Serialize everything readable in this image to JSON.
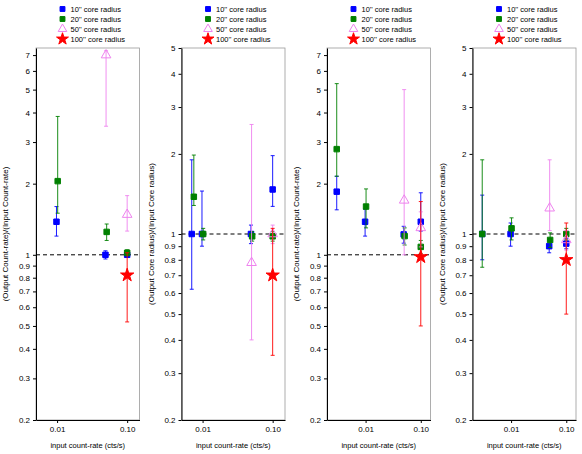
{
  "chart_data": [
    {
      "type": "scatter",
      "x_label": "input count-rate (cts/s)",
      "y_label": "(Output Count-rate)/(Input Count-rate)",
      "log": true,
      "legend": "upper right",
      "xlim": [
        0.005,
        0.15
      ],
      "ylim": [
        0.2,
        7.5
      ],
      "xticks": [
        0.01,
        {
          "value": 0.1,
          "label": "0.10"
        }
      ],
      "yticks": [
        0.2,
        0.3,
        0.4,
        0.5,
        0.6,
        0.7,
        0.8,
        0.9,
        1,
        2,
        3,
        4,
        5,
        6,
        7
      ],
      "reference_lines": [
        {
          "y": 1.0,
          "color": "black",
          "line_style": "dashed"
        }
      ],
      "series": [
        {
          "name": "10'' core radius",
          "color": "blue",
          "marker": "square",
          "x": [
            0.0098,
            0.049,
            0.1
          ],
          "values": [
            1.38,
            1.0,
            1.0
          ],
          "error_low": [
            0.18,
            0.04,
            0.02
          ],
          "error_high": [
            0.22,
            0.04,
            0.02
          ]
        },
        {
          "name": "20'' core radius",
          "color": "green",
          "marker": "square",
          "x": [
            0.0102,
            0.051,
            0.1
          ],
          "values": [
            2.05,
            1.25,
            1.02
          ],
          "error_low": [
            0.55,
            0.1,
            0.03
          ],
          "error_high": [
            1.8,
            0.1,
            0.03
          ]
        },
        {
          "name": "50'' core radius",
          "color": "violet",
          "marker": "triangle-open",
          "x": [
            0.05,
            0.1
          ],
          "values": [
            7.0,
            1.48
          ],
          "error_low": [
            3.5,
            0.22
          ],
          "error_high": [
            0.3,
            0.3
          ]
        },
        {
          "name": "100'' core radius",
          "color": "red",
          "marker": "star",
          "x": [
            0.1
          ],
          "values": [
            0.82
          ],
          "error_low": [
            0.3
          ],
          "error_high": [
            0.2
          ]
        }
      ]
    },
    {
      "type": "scatter",
      "x_label": "input count-rate (cts/s)",
      "y_label": "(Output Core radius)/(Input Core radius)",
      "log": true,
      "legend": "upper right",
      "xlim": [
        0.005,
        0.15
      ],
      "ylim": [
        0.2,
        5.0
      ],
      "xticks": [
        0.01,
        {
          "value": 0.1,
          "label": "0.10"
        }
      ],
      "yticks": [
        0.2,
        0.3,
        0.4,
        0.5,
        0.6,
        0.7,
        0.8,
        0.9,
        1,
        2,
        3,
        4,
        5
      ],
      "reference_lines": [
        {
          "y": 1.0,
          "color": "black",
          "line_style": "dashed"
        }
      ],
      "series": [
        {
          "name": "10'' core radius",
          "color": "blue",
          "marker": "square",
          "x": [
            0.007,
            0.0098,
            0.049,
            0.1
          ],
          "values": [
            1.0,
            1.0,
            1.0,
            1.47
          ],
          "error_low": [
            0.38,
            0.1,
            0.08,
            0.2
          ],
          "error_high": [
            0.9,
            0.45,
            0.08,
            0.5
          ]
        },
        {
          "name": "20'' core radius",
          "color": "green",
          "marker": "square",
          "x": [
            0.0075,
            0.0102,
            0.051,
            0.1
          ],
          "values": [
            1.38,
            1.0,
            0.98,
            0.98
          ],
          "error_low": [
            0.1,
            0.05,
            0.04,
            0.04
          ],
          "error_high": [
            0.6,
            0.05,
            0.04,
            0.04
          ]
        },
        {
          "name": "50'' core radius",
          "color": "violet",
          "marker": "triangle-open",
          "x": [
            0.05,
            0.1
          ],
          "values": [
            0.78,
            1.0
          ],
          "error_low": [
            0.38,
            0.08
          ],
          "error_high": [
            1.8,
            0.08
          ]
        },
        {
          "name": "100'' core radius",
          "color": "red",
          "marker": "star",
          "x": [
            0.1
          ],
          "values": [
            0.7
          ],
          "error_low": [
            0.35
          ],
          "error_high": [
            0.35
          ]
        }
      ]
    },
    {
      "type": "scatter",
      "x_label": "input count-rate (cts/s)",
      "y_label": "(Output Count-rate)/(Input Count-rate)",
      "log": true,
      "legend": "upper right",
      "xlim": [
        0.002,
        0.15
      ],
      "ylim": [
        0.2,
        7.5
      ],
      "xticks": [
        0.01,
        {
          "value": 0.1,
          "label": "0.10"
        }
      ],
      "yticks": [
        0.2,
        0.3,
        0.4,
        0.5,
        0.6,
        0.7,
        0.8,
        0.9,
        1,
        2,
        3,
        4,
        5,
        6,
        7
      ],
      "reference_lines": [
        {
          "y": 1.0,
          "color": "black",
          "line_style": "dashed"
        }
      ],
      "series": [
        {
          "name": "10'' core radius",
          "color": "blue",
          "marker": "square",
          "x": [
            0.003,
            0.0098,
            0.049,
            0.1
          ],
          "values": [
            1.85,
            1.38,
            1.22,
            1.38
          ],
          "error_low": [
            0.3,
            0.18,
            0.1,
            0.12
          ],
          "error_high": [
            0.3,
            0.18,
            0.1,
            0.45
          ]
        },
        {
          "name": "20'' core radius",
          "color": "green",
          "marker": "square",
          "x": [
            0.003,
            0.0102,
            0.051,
            0.1
          ],
          "values": [
            2.8,
            1.6,
            1.2,
            1.08
          ],
          "error_low": [
            0.65,
            0.3,
            0.1,
            0.07
          ],
          "error_high": [
            2.5,
            0.3,
            0.1,
            0.07
          ]
        },
        {
          "name": "50'' core radius",
          "color": "violet",
          "marker": "triangle-open",
          "x": [
            0.05,
            0.1
          ],
          "values": [
            1.7,
            1.3
          ],
          "error_low": [
            0.7,
            0.22
          ],
          "error_high": [
            3.3,
            0.22
          ]
        },
        {
          "name": "100'' core radius",
          "color": "red",
          "marker": "star",
          "x": [
            0.1
          ],
          "values": [
            0.98
          ],
          "error_low": [
            0.48
          ],
          "error_high": [
            0.7
          ]
        }
      ]
    },
    {
      "type": "scatter",
      "x_label": "input count-rate (cts/s)",
      "y_label": "(Output Core radius)/(Input Core radius)",
      "log": true,
      "legend": "upper right",
      "xlim": [
        0.002,
        0.15
      ],
      "ylim": [
        0.2,
        5.0
      ],
      "xticks": [
        0.01,
        {
          "value": 0.1,
          "label": "0.10"
        }
      ],
      "yticks": [
        0.2,
        0.3,
        0.4,
        0.5,
        0.6,
        0.7,
        0.8,
        0.9,
        1,
        2,
        3,
        4,
        5
      ],
      "reference_lines": [
        {
          "y": 1.0,
          "color": "black",
          "line_style": "dashed"
        }
      ],
      "series": [
        {
          "name": "10'' core radius",
          "color": "blue",
          "marker": "square",
          "x": [
            0.003,
            0.0098,
            0.049,
            0.1
          ],
          "values": [
            1.0,
            1.0,
            0.9,
            0.92
          ],
          "error_low": [
            0.2,
            0.1,
            0.05,
            0.04
          ],
          "error_high": [
            0.4,
            0.1,
            0.05,
            0.04
          ]
        },
        {
          "name": "20'' core radius",
          "color": "green",
          "marker": "square",
          "x": [
            0.003,
            0.0102,
            0.051,
            0.1
          ],
          "values": [
            1.0,
            1.05,
            0.95,
            1.0
          ],
          "error_low": [
            0.25,
            0.1,
            0.06,
            0.05
          ],
          "error_high": [
            0.9,
            0.1,
            0.06,
            0.05
          ]
        },
        {
          "name": "50'' core radius",
          "color": "violet",
          "marker": "triangle-open",
          "x": [
            0.05,
            0.1
          ],
          "values": [
            1.25,
            0.95
          ],
          "error_low": [
            0.22,
            0.08
          ],
          "error_high": [
            0.65,
            0.08
          ]
        },
        {
          "name": "100'' core radius",
          "color": "red",
          "marker": "star",
          "x": [
            0.1
          ],
          "values": [
            0.8
          ],
          "error_low": [
            0.3
          ],
          "error_high": [
            0.3
          ]
        }
      ]
    }
  ]
}
